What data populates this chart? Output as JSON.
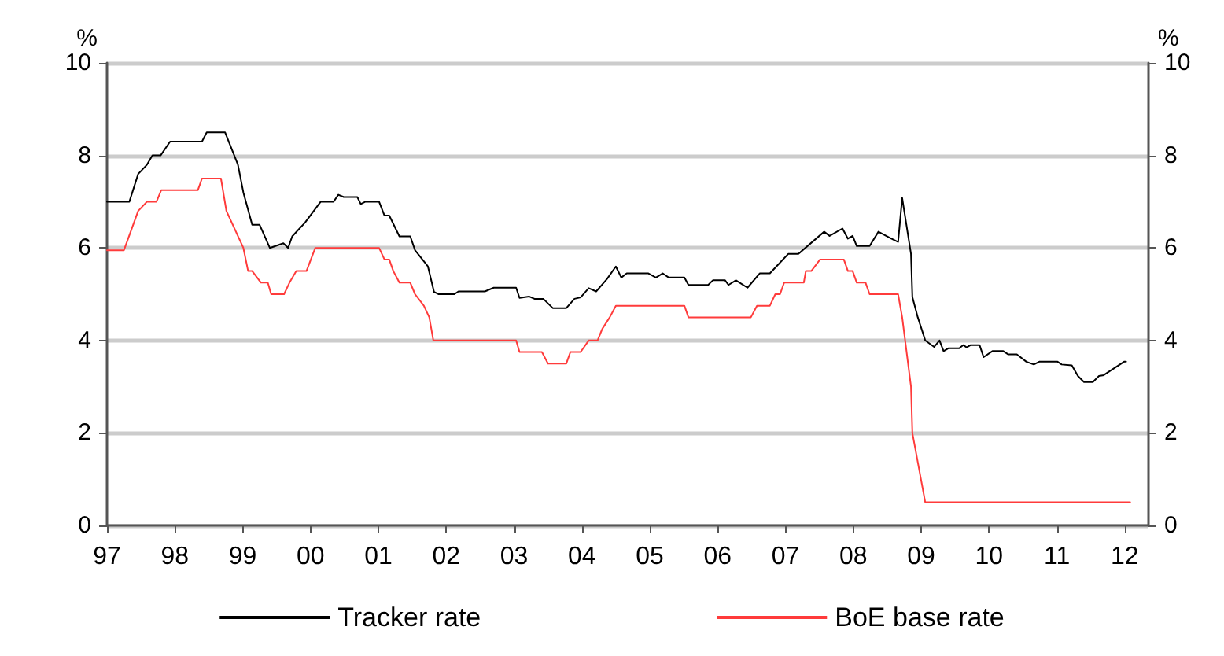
{
  "chart_data": {
    "type": "line",
    "ylabel": "%",
    "y2label": "%",
    "xlim": [
      1997,
      2012.35
    ],
    "xticks": [
      {
        "value": 1997,
        "label": "97"
      },
      {
        "value": 1998,
        "label": "98"
      },
      {
        "value": 1999,
        "label": "99"
      },
      {
        "value": 2000,
        "label": "00"
      },
      {
        "value": 2001,
        "label": "01"
      },
      {
        "value": 2002,
        "label": "02"
      },
      {
        "value": 2003,
        "label": "03"
      },
      {
        "value": 2004,
        "label": "04"
      },
      {
        "value": 2005,
        "label": "05"
      },
      {
        "value": 2006,
        "label": "06"
      },
      {
        "value": 2007,
        "label": "07"
      },
      {
        "value": 2008,
        "label": "08"
      },
      {
        "value": 2009,
        "label": "09"
      },
      {
        "value": 2010,
        "label": "10"
      },
      {
        "value": 2011,
        "label": "11"
      },
      {
        "value": 2012,
        "label": "12"
      }
    ],
    "ylim": [
      0,
      10
    ],
    "yticks": [
      0,
      2,
      4,
      6,
      8,
      10
    ],
    "y2lim": [
      0,
      10
    ],
    "y2ticks": [
      0,
      2,
      4,
      6,
      8,
      10
    ],
    "grid": "y",
    "legend": "bottom",
    "marker": "none",
    "line_style": "solid",
    "series": [
      {
        "name": "Tracker rate",
        "color": "#000000",
        "x": [
          1997.0,
          1997.33,
          1997.46,
          1997.59,
          1997.67,
          1997.79,
          1997.93,
          1998.4,
          1998.47,
          1998.74,
          1998.93,
          1999.01,
          1999.14,
          1999.25,
          1999.4,
          1999.6,
          1999.67,
          1999.73,
          1999.92,
          2000.15,
          2000.34,
          2000.41,
          2000.49,
          2000.69,
          2000.74,
          2000.81,
          2001.01,
          2001.09,
          2001.16,
          2001.31,
          2001.47,
          2001.54,
          2001.73,
          2001.82,
          2001.89,
          2002.12,
          2002.18,
          2002.57,
          2002.7,
          2003.03,
          2003.08,
          2003.22,
          2003.3,
          2003.43,
          2003.57,
          2003.77,
          2003.89,
          2003.98,
          2004.1,
          2004.21,
          2004.37,
          2004.5,
          2004.58,
          2004.66,
          2004.98,
          2005.09,
          2005.19,
          2005.28,
          2005.51,
          2005.57,
          2005.86,
          2005.93,
          2006.11,
          2006.16,
          2006.27,
          2006.44,
          2006.62,
          2006.77,
          2006.88,
          2007.04,
          2007.19,
          2007.57,
          2007.65,
          2007.84,
          2007.92,
          2007.99,
          2008.05,
          2008.24,
          2008.37,
          2008.56,
          2008.66,
          2008.72,
          2008.85,
          2008.87,
          2008.95,
          2009.06,
          2009.19,
          2009.27,
          2009.33,
          2009.4,
          2009.56,
          2009.62,
          2009.67,
          2009.73,
          2009.86,
          2009.92,
          2010.05,
          2010.21,
          2010.28,
          2010.41,
          2010.55,
          2010.66,
          2010.74,
          2011.01,
          2011.07,
          2011.22,
          2011.31,
          2011.4,
          2011.53,
          2011.62,
          2011.69,
          2011.99,
          2012.02
        ],
        "values": [
          7.0,
          7.0,
          7.6,
          7.8,
          8.0,
          8.0,
          8.3,
          8.3,
          8.5,
          8.5,
          7.8,
          7.2,
          6.5,
          6.5,
          6.0,
          6.1,
          6.0,
          6.25,
          6.55,
          7.0,
          7.0,
          7.15,
          7.1,
          7.1,
          6.95,
          7.0,
          7.0,
          6.7,
          6.7,
          6.25,
          6.25,
          5.95,
          5.6,
          5.05,
          5.0,
          5.0,
          5.06,
          5.06,
          5.14,
          5.14,
          4.92,
          4.95,
          4.9,
          4.9,
          4.7,
          4.7,
          4.9,
          4.93,
          5.13,
          5.06,
          5.33,
          5.6,
          5.36,
          5.45,
          5.45,
          5.36,
          5.45,
          5.36,
          5.36,
          5.2,
          5.2,
          5.3,
          5.3,
          5.2,
          5.3,
          5.14,
          5.45,
          5.45,
          5.62,
          5.87,
          5.87,
          6.35,
          6.26,
          6.42,
          6.2,
          6.26,
          6.04,
          6.04,
          6.35,
          6.2,
          6.13,
          7.08,
          5.87,
          4.94,
          4.5,
          4.0,
          3.86,
          4.0,
          3.77,
          3.83,
          3.83,
          3.9,
          3.85,
          3.9,
          3.9,
          3.64,
          3.77,
          3.77,
          3.7,
          3.7,
          3.54,
          3.48,
          3.54,
          3.54,
          3.48,
          3.46,
          3.23,
          3.1,
          3.1,
          3.23,
          3.25,
          3.54,
          3.54
        ]
      },
      {
        "name": "BoE base rate",
        "color": "#ff3b3b",
        "x": [
          1997.0,
          1997.25,
          1997.46,
          1997.59,
          1997.73,
          1997.8,
          1998.34,
          1998.4,
          1998.68,
          1998.76,
          1999.01,
          1999.08,
          1999.14,
          1999.27,
          1999.37,
          1999.42,
          1999.61,
          1999.69,
          1999.79,
          1999.94,
          2000.07,
          2001.01,
          2001.09,
          2001.16,
          2001.22,
          2001.31,
          2001.47,
          2001.54,
          2001.67,
          2001.75,
          2001.81,
          2003.03,
          2003.08,
          2003.41,
          2003.5,
          2003.77,
          2003.83,
          2003.98,
          2004.1,
          2004.23,
          2004.3,
          2004.41,
          2004.5,
          2005.51,
          2005.57,
          2006.49,
          2006.58,
          2006.77,
          2006.85,
          2006.92,
          2006.98,
          2007.27,
          2007.3,
          2007.38,
          2007.51,
          2007.86,
          2007.92,
          2007.99,
          2008.05,
          2008.18,
          2008.24,
          2008.66,
          2008.72,
          2008.85,
          2008.87,
          2009.06,
          2012.08
        ],
        "values": [
          5.95,
          5.95,
          6.8,
          7.0,
          7.0,
          7.25,
          7.25,
          7.5,
          7.5,
          6.8,
          6.0,
          5.5,
          5.5,
          5.25,
          5.25,
          5.0,
          5.0,
          5.25,
          5.5,
          5.5,
          6.0,
          6.0,
          5.75,
          5.75,
          5.5,
          5.25,
          5.25,
          5.0,
          4.75,
          4.5,
          4.0,
          4.0,
          3.75,
          3.75,
          3.5,
          3.5,
          3.75,
          3.75,
          4.0,
          4.0,
          4.25,
          4.5,
          4.75,
          4.75,
          4.5,
          4.5,
          4.75,
          4.75,
          5.0,
          5.0,
          5.25,
          5.25,
          5.5,
          5.5,
          5.75,
          5.75,
          5.5,
          5.5,
          5.25,
          5.25,
          5.0,
          5.0,
          4.5,
          3.0,
          2.0,
          0.5,
          0.5
        ]
      }
    ]
  }
}
